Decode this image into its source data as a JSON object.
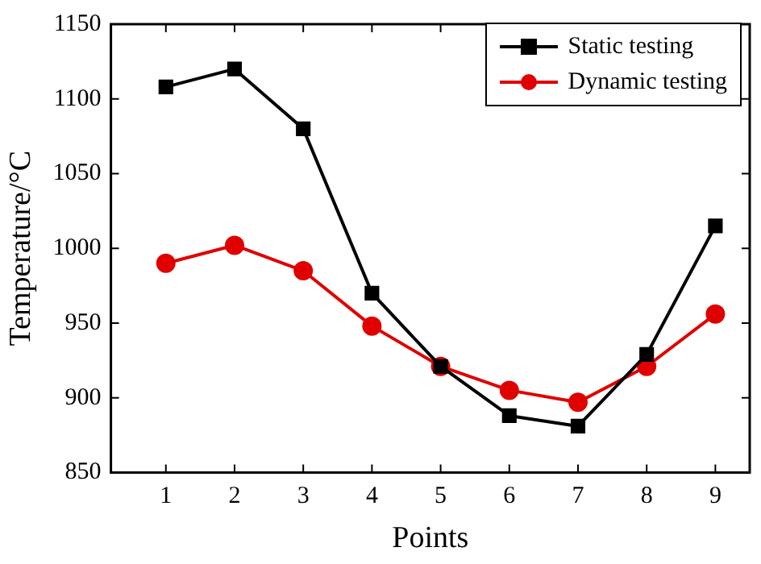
{
  "chart_data": {
    "type": "line",
    "xlabel": "Points",
    "ylabel": "Temperature/°C",
    "x": [
      1,
      2,
      3,
      4,
      5,
      6,
      7,
      8,
      9
    ],
    "xlim": [
      0.2,
      9.5
    ],
    "xticks": [
      1,
      2,
      3,
      4,
      5,
      6,
      7,
      8,
      9
    ],
    "ylim": [
      850,
      1150
    ],
    "yticks": [
      850,
      900,
      950,
      1000,
      1050,
      1100,
      1150
    ],
    "grid": false,
    "legend": "top right",
    "line_style": "solid",
    "series": [
      {
        "name": "Static testing",
        "color": "#000000",
        "marker": "square",
        "values": [
          1108,
          1120,
          1080,
          970,
          921,
          888,
          881,
          929,
          1015
        ]
      },
      {
        "name": "Dynamic testing",
        "color": "#e00000",
        "marker": "circle",
        "values": [
          990,
          1002,
          985,
          948,
          921,
          905,
          897,
          921,
          956
        ]
      }
    ]
  }
}
